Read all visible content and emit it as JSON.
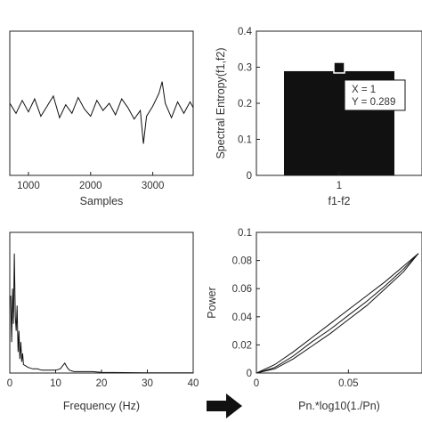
{
  "chart_data": [
    {
      "id": "signal",
      "type": "line",
      "title": "",
      "xlabel": "Samples",
      "ylabel": "",
      "xlim": [
        700,
        3650
      ],
      "ylim": [
        -3.5,
        6.5
      ],
      "xticks": [
        1000,
        2000,
        3000
      ],
      "xtick_labels": [
        "1000",
        "2000",
        "3000"
      ],
      "yticks": [],
      "ytick_labels": [],
      "grid": false,
      "series": [
        {
          "x": [
            700,
            800,
            900,
            1000,
            1100,
            1200,
            1300,
            1400,
            1500,
            1600,
            1700,
            1800,
            1900,
            2000,
            2100,
            2200,
            2300,
            2400,
            2500,
            2600,
            2700,
            2800,
            2850,
            2900,
            3000,
            3100,
            3150,
            3200,
            3300,
            3400,
            3500,
            3600,
            3650
          ],
          "y": [
            1.5,
            0.8,
            1.7,
            0.9,
            1.8,
            0.6,
            1.3,
            2.0,
            0.5,
            1.4,
            0.8,
            1.9,
            1.1,
            0.6,
            1.7,
            1.0,
            1.5,
            0.7,
            1.8,
            1.2,
            0.4,
            1.0,
            -1.3,
            0.6,
            1.3,
            2.2,
            3.0,
            1.5,
            0.5,
            1.6,
            0.8,
            1.6,
            1.2
          ]
        }
      ]
    },
    {
      "id": "entropy",
      "type": "bar",
      "title": "",
      "xlabel": "f1-f2",
      "ylabel": "Spectral Entropy(f1,f2)",
      "categories": [
        "1"
      ],
      "values": [
        0.289
      ],
      "ylim": [
        0,
        0.4
      ],
      "yticks": [
        0,
        0.1,
        0.2,
        0.3,
        0.4
      ],
      "ytick_labels": [
        "0",
        "0.1",
        "0.2",
        "0.3",
        "0.4"
      ],
      "grid": false,
      "bar_color": "#111111",
      "annotation": {
        "x_text": "X = 1",
        "y_text": "Y = 0.289",
        "marker_x": 1,
        "marker_y": 0.289
      }
    },
    {
      "id": "spectrum",
      "type": "line",
      "title": "",
      "xlabel": "Frequency (Hz)",
      "ylabel": "",
      "xlim": [
        0,
        40
      ],
      "ylim": [
        0,
        1
      ],
      "xticks": [
        0,
        10,
        20,
        30,
        40
      ],
      "xtick_labels": [
        "0",
        "10",
        "20",
        "30",
        "40"
      ],
      "yticks": [],
      "ytick_labels": [],
      "grid": false,
      "series": [
        {
          "x": [
            0.2,
            0.4,
            0.6,
            0.8,
            1.0,
            1.2,
            1.4,
            1.6,
            1.8,
            2.0,
            2.2,
            2.4,
            2.6,
            2.8,
            3.0,
            3.5,
            4,
            5,
            6,
            7,
            8,
            9,
            10,
            11,
            11.5,
            12,
            12.5,
            13,
            14,
            16,
            18,
            20,
            25,
            30,
            35,
            40
          ],
          "y": [
            0.55,
            0.22,
            0.6,
            0.35,
            0.85,
            0.4,
            0.3,
            0.48,
            0.15,
            0.3,
            0.1,
            0.22,
            0.08,
            0.14,
            0.06,
            0.05,
            0.04,
            0.03,
            0.03,
            0.02,
            0.02,
            0.02,
            0.02,
            0.03,
            0.05,
            0.07,
            0.04,
            0.02,
            0.01,
            0.01,
            0.01,
            0.005,
            0.003,
            0.002,
            0.002,
            0.002
          ]
        }
      ]
    },
    {
      "id": "power",
      "type": "line",
      "title": "",
      "xlabel": "Pn.*log10(1./Pn)",
      "ylabel": "Power",
      "xlim": [
        0,
        0.09
      ],
      "ylim": [
        0,
        0.1
      ],
      "xticks": [
        0,
        0.05
      ],
      "xtick_labels": [
        "0",
        "0.05"
      ],
      "yticks": [
        0,
        0.02,
        0.04,
        0.06,
        0.08,
        0.1
      ],
      "ytick_labels": [
        "0",
        "0.02",
        "0.04",
        "0.06",
        "0.08",
        "0.1"
      ],
      "grid": false,
      "series": [
        {
          "x": [
            0,
            0.01,
            0.02,
            0.03,
            0.04,
            0.05,
            0.06,
            0.07,
            0.08,
            0.088
          ],
          "y": [
            0,
            0.004,
            0.012,
            0.022,
            0.031,
            0.041,
            0.051,
            0.062,
            0.074,
            0.085
          ]
        },
        {
          "x": [
            0,
            0.01,
            0.02,
            0.03,
            0.04,
            0.05,
            0.06,
            0.07,
            0.08,
            0.088
          ],
          "y": [
            0,
            0.006,
            0.015,
            0.025,
            0.035,
            0.045,
            0.055,
            0.065,
            0.076,
            0.085
          ]
        },
        {
          "x": [
            0,
            0.01,
            0.02,
            0.03,
            0.04,
            0.05,
            0.06,
            0.07,
            0.08,
            0.088
          ],
          "y": [
            0,
            0.003,
            0.01,
            0.019,
            0.028,
            0.038,
            0.048,
            0.06,
            0.072,
            0.085
          ]
        }
      ]
    }
  ],
  "arrow_color": "#111111"
}
